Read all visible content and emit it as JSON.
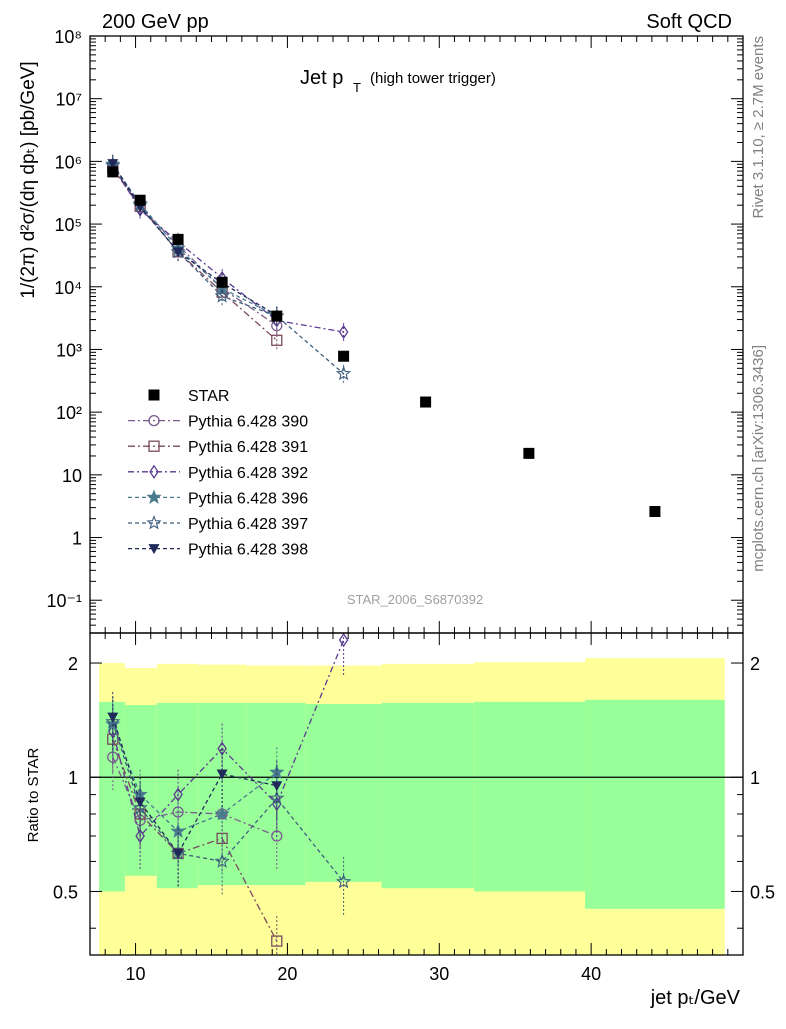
{
  "header": {
    "left": "200 GeV pp",
    "right": "Soft QCD"
  },
  "side_text": {
    "rivet": "Rivet 3.1.10, ≥ 2.7M events",
    "site": "mcplots.cern.ch [arXiv:1306.3436]"
  },
  "main": {
    "title_main": "Jet p",
    "title_sub": "T",
    "title_extra": "(high tower trigger)",
    "analysis_tag": "STAR_2006_S6870392",
    "ylabel": "1/(2π) d²σ/(dη dpₜ) [pb/GeV]",
    "ytick_labels": [
      "10⁻¹",
      "1",
      "10",
      "10²",
      "10³",
      "10⁴",
      "10⁵",
      "10⁶",
      "10⁷",
      "10⁸"
    ]
  },
  "ratio": {
    "ylabel": "Ratio to STAR",
    "ytick_labels": [
      "0.5",
      "1",
      "2"
    ]
  },
  "xaxis": {
    "label": "jet pₜ/GeV",
    "tick_labels": [
      "10",
      "20",
      "30",
      "40"
    ]
  },
  "chart_data": {
    "type": "scatter",
    "x_range": [
      7,
      50
    ],
    "y_scale": "log",
    "y_range": [
      0.03,
      100000000
    ],
    "ratio_range": [
      0.34,
      2.4
    ],
    "legend_position": "lower-left",
    "data": {
      "name": "STAR",
      "color": "#000000",
      "x": [
        8.5,
        10.3,
        12.8,
        15.7,
        19.3,
        23.7,
        29.1,
        35.9,
        44.2
      ],
      "y": [
        680000,
        240000,
        57000,
        11800,
        3400,
        780,
        145,
        22,
        2.6
      ],
      "x_low": [
        7.6,
        9.3,
        11.4,
        14.1,
        17.3,
        21.2,
        26.2,
        32.3,
        39.6
      ],
      "x_high": [
        9.3,
        11.4,
        14.1,
        17.3,
        21.2,
        26.2,
        32.3,
        39.6,
        48.8
      ],
      "band_inner_low": [
        0.5,
        0.55,
        0.51,
        0.52,
        0.52,
        0.53,
        0.51,
        0.5,
        0.45
      ],
      "band_inner_high": [
        1.58,
        1.55,
        1.57,
        1.57,
        1.57,
        1.56,
        1.57,
        1.58,
        1.6
      ],
      "band_outer_low": [
        0.34,
        0.34,
        0.34,
        0.34,
        0.34,
        0.34,
        0.34,
        0.34,
        0.34
      ],
      "band_outer_high": [
        2.0,
        1.94,
        1.99,
        1.98,
        1.97,
        1.97,
        1.99,
        2.01,
        2.06
      ]
    },
    "series": [
      {
        "name": "Pythia 6.428 390",
        "color": "#7a5c8e",
        "marker": "circle-open",
        "dash": "7,3,2,3",
        "x": [
          8.5,
          10.3,
          12.8,
          15.7,
          19.3
        ],
        "y": [
          770000,
          185000,
          46000,
          9400,
          2400
        ],
        "ratio": [
          1.13,
          0.77,
          0.81,
          0.8,
          0.7
        ]
      },
      {
        "name": "Pythia 6.428 391",
        "color": "#7a4a5e",
        "marker": "square-open",
        "dash": "7,3,2,3",
        "x": [
          8.5,
          10.3,
          12.8,
          15.7,
          19.3
        ],
        "y": [
          780000,
          193000,
          36000,
          8200,
          1400
        ],
        "ratio": [
          1.26,
          0.8,
          0.63,
          0.69,
          0.37
        ]
      },
      {
        "name": "Pythia 6.428 392",
        "color": "#5b3a8f",
        "marker": "diamond-open",
        "dash": "6,3,2,3",
        "x": [
          8.5,
          10.3,
          12.8,
          15.7,
          19.3,
          23.7
        ],
        "y": [
          850000,
          170000,
          52000,
          13800,
          2900,
          1900
        ],
        "ratio": [
          1.32,
          0.7,
          0.9,
          1.19,
          0.85,
          2.3
        ]
      },
      {
        "name": "Pythia 6.428 396",
        "color": "#4a7c8e",
        "marker": "star-filled",
        "dash": "4,3",
        "x": [
          8.5,
          10.3,
          12.8,
          15.7,
          19.3
        ],
        "y": [
          900000,
          210000,
          41000,
          9400,
          3400
        ],
        "ratio": [
          1.38,
          0.9,
          0.72,
          0.8,
          1.03
        ]
      },
      {
        "name": "Pythia 6.428 397",
        "color": "#3f5f7e",
        "marker": "star-open",
        "dash": "4,3",
        "x": [
          8.5,
          10.3,
          12.8,
          15.7,
          19.3,
          23.7
        ],
        "y": [
          860000,
          200000,
          36000,
          7100,
          3400,
          410
        ],
        "ratio": [
          1.4,
          0.83,
          0.63,
          0.6,
          0.88,
          0.53
        ]
      },
      {
        "name": "Pythia 6.428 398",
        "color": "#1f2a5a",
        "marker": "triangle-down",
        "dash": "4,3",
        "x": [
          8.5,
          10.3,
          12.8,
          15.7,
          19.3
        ],
        "y": [
          920000,
          190000,
          36000,
          11500,
          3500
        ],
        "ratio": [
          1.44,
          0.86,
          0.63,
          1.02,
          0.95
        ]
      }
    ]
  }
}
